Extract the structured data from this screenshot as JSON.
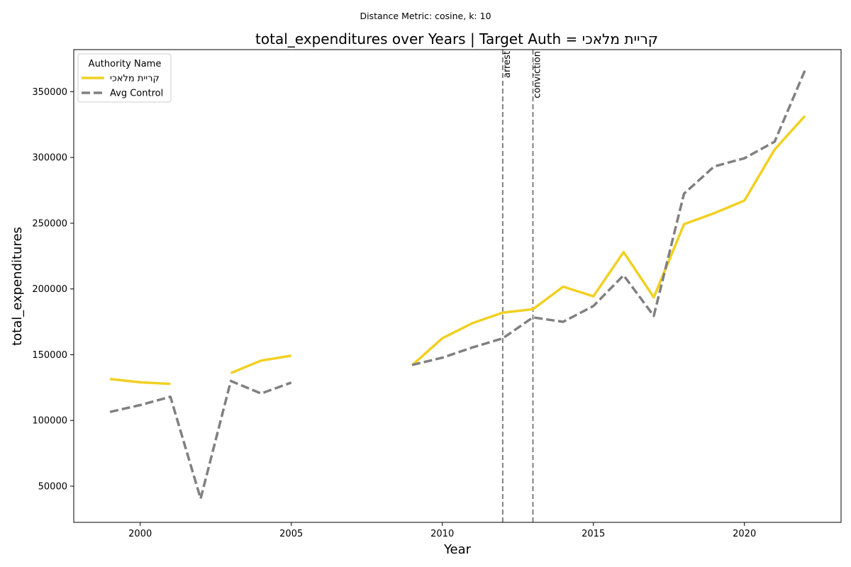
{
  "chart_data": {
    "type": "line",
    "suptitle": "Distance Metric: cosine, k: 10",
    "title": "total_expenditures over Years | Target Auth = קריית מלאכי",
    "xlabel": "Year",
    "ylabel": "total_expenditures",
    "xlim": [
      1997.8,
      2023.2
    ],
    "ylim": [
      22500,
      382000
    ],
    "xticks": [
      2000,
      2005,
      2010,
      2015,
      2020
    ],
    "yticks": [
      50000,
      100000,
      150000,
      200000,
      250000,
      300000,
      350000
    ],
    "grid": false,
    "legend": {
      "title": "Authority Name",
      "placement": "top-left"
    },
    "series": [
      {
        "name": "קריית מלאכי",
        "color": "#f2d022",
        "style": "solid",
        "x": [
          1999,
          2000,
          2001,
          2002,
          2003,
          2004,
          2005,
          2006,
          2007,
          2008,
          2009,
          2010,
          2011,
          2012,
          2013,
          2014,
          2015,
          2016,
          2017,
          2018,
          2019,
          2020,
          2021,
          2022
        ],
        "values": [
          131500,
          129000,
          127800,
          null,
          136000,
          145500,
          149200,
          null,
          null,
          null,
          142000,
          162500,
          174000,
          182000,
          184600,
          201700,
          194400,
          228000,
          193600,
          249200,
          257600,
          267200,
          306000,
          331500
        ]
      },
      {
        "name": "Avg Control",
        "color": "#808080",
        "style": "dashed",
        "x": [
          1999,
          2000,
          2001,
          2002,
          2003,
          2004,
          2005,
          2006,
          2007,
          2008,
          2009,
          2010,
          2011,
          2012,
          2013,
          2014,
          2015,
          2016,
          2017,
          2018,
          2019,
          2020,
          2021,
          2022
        ],
        "values": [
          106500,
          111700,
          118000,
          40500,
          130000,
          120500,
          128800,
          null,
          null,
          null,
          142200,
          147700,
          155500,
          162400,
          178400,
          175000,
          187000,
          210400,
          179500,
          272400,
          293200,
          299400,
          312000,
          366000
        ]
      }
    ],
    "vlines": [
      {
        "x": 2012,
        "label": "arrest",
        "color": "#808080"
      },
      {
        "x": 2013,
        "label": "conviction",
        "color": "#808080"
      }
    ]
  }
}
